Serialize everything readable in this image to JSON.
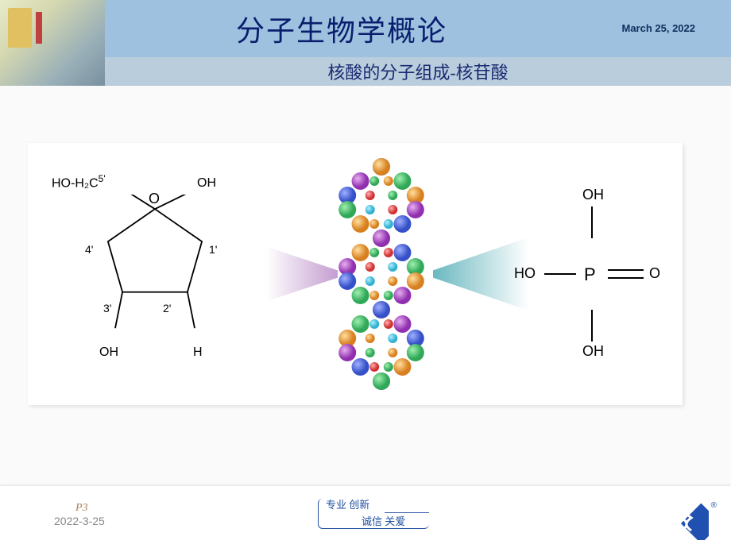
{
  "header": {
    "title": "分子生物学概论",
    "subtitle": "核酸的分子组成-核苷酸",
    "date": "March 25, 2022"
  },
  "diagram": {
    "sugar": {
      "labels": {
        "top_left": "HO-H₂C",
        "c5": "5'",
        "oxygen": "O",
        "top_right_oh": "OH",
        "c4": "4'",
        "c1": "1'",
        "c3": "3'",
        "c2": "2'",
        "bottom_left_oh": "OH",
        "bottom_right_h": "H"
      },
      "line_color": "#000000",
      "line_width": 2
    },
    "dna": {
      "backbone_colors": [
        "#5570d8",
        "#50c878",
        "#e8a030",
        "#b040c0"
      ],
      "base_colors": [
        "#ff4040",
        "#40c0ff",
        "#ffc040",
        "#60d060"
      ],
      "link_color": "#50d0e0"
    },
    "phosphate": {
      "center": "P",
      "top": "OH",
      "left": "HO",
      "right": "O",
      "bottom": "OH",
      "line_color": "#000000"
    },
    "gradient_left": [
      "#ffffff",
      "#c49dd0"
    ],
    "gradient_right": [
      "#ffffff",
      "#6ab8c0"
    ]
  },
  "footer": {
    "page": "P3",
    "date": "2022-3-25",
    "motto_line1": "专业  创新",
    "motto_line2": "诚信  关爱",
    "logo_color": "#2050b0",
    "registered": "®"
  },
  "colors": {
    "header_bg": "#a5c5df",
    "title_bg": "#9dc1de",
    "subtitle_bg": "#b9cddd",
    "title_text": "#0a1e6e",
    "page_bg": "#fafafa",
    "content_bg": "#ffffff"
  }
}
